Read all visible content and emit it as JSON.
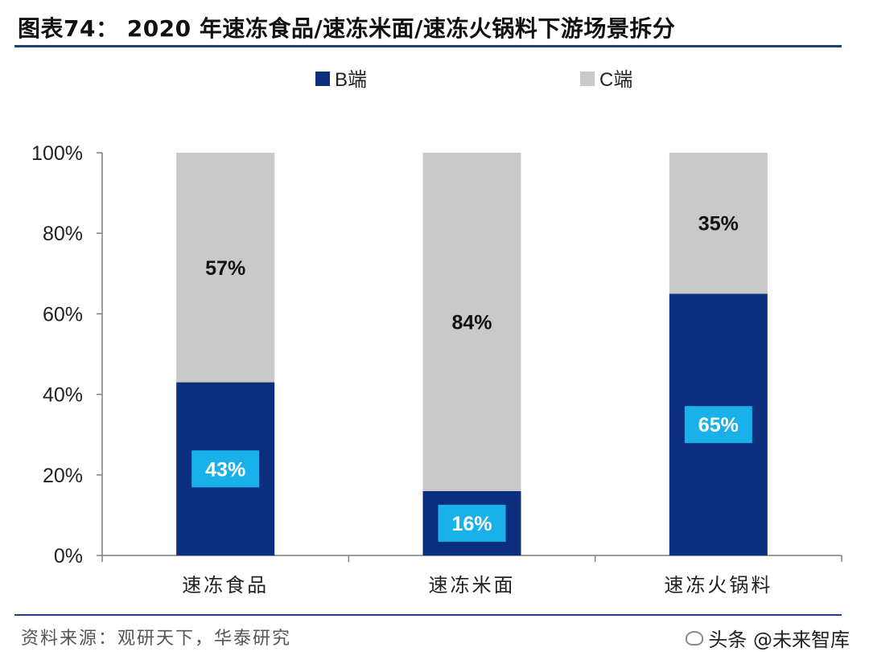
{
  "title": "图表74：  2020 年速冻食品/速冻米面/速冻火锅料下游场景拆分",
  "source": "资料来源：观研天下，华泰研究",
  "watermark": "头条 @未来智库",
  "colors": {
    "b_end": "#0b2f7e",
    "c_end": "#c9c9c9",
    "label_box": "#1ab0ea",
    "axis": "#7f7f7f",
    "title_rule": "#1f3f7a"
  },
  "chart_data": {
    "type": "bar",
    "stacked": true,
    "percent": true,
    "categories": [
      "速冻食品",
      "速冻米面",
      "速冻火锅料"
    ],
    "series": [
      {
        "name": "B端",
        "values": [
          43,
          16,
          65
        ],
        "labels": [
          "43%",
          "16%",
          "65%"
        ]
      },
      {
        "name": "C端",
        "values": [
          57,
          84,
          35
        ],
        "labels": [
          "57%",
          "84%",
          "35%"
        ]
      }
    ],
    "yticks": [
      "0%",
      "20%",
      "40%",
      "60%",
      "80%",
      "100%"
    ],
    "ylim": [
      0,
      100
    ],
    "legend": "top-center",
    "grid": false
  }
}
